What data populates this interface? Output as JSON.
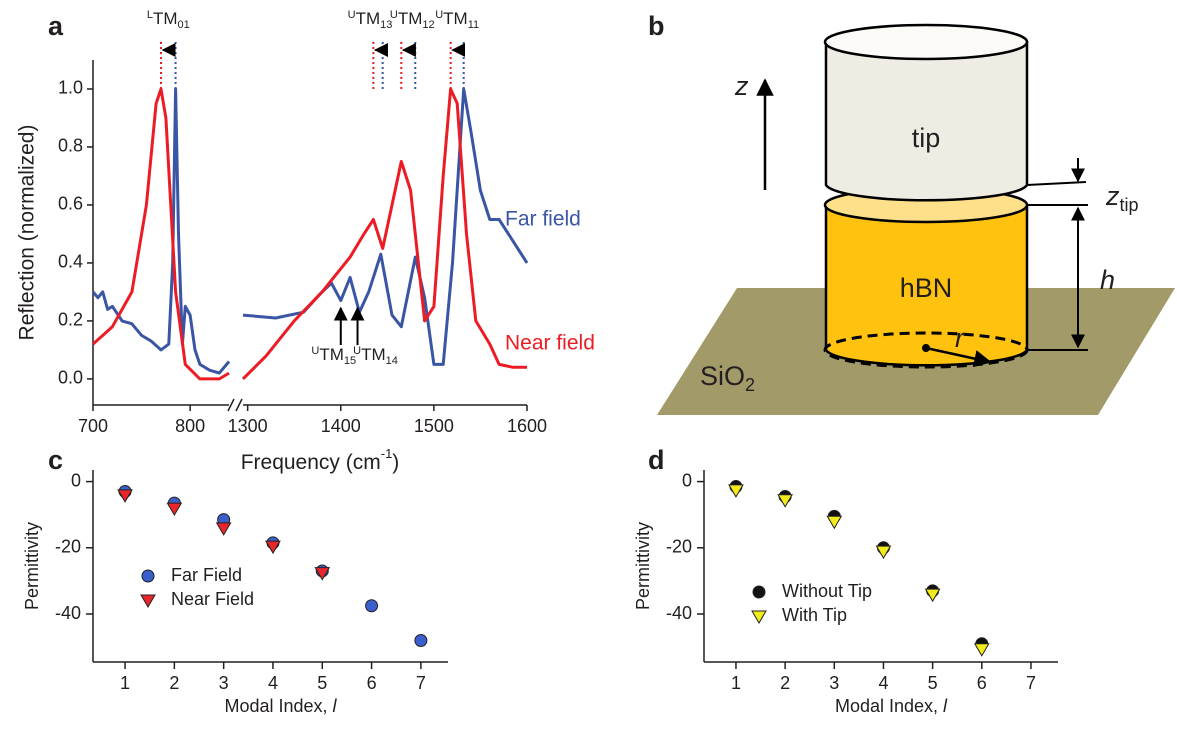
{
  "panel_labels": [
    "a",
    "b",
    "c",
    "d"
  ],
  "chart_data": [
    {
      "type": "line",
      "y_label": "Reflection (normalized)",
      "x_label": {
        "text": "Frequency (cm",
        "sup": "-1",
        "end": ")"
      },
      "x_segments": [
        [
          700,
          840
        ],
        [
          1295,
          1600
        ]
      ],
      "ylim": [
        -0.09,
        1.1
      ],
      "xticks": [
        700,
        800,
        1300,
        1400,
        1500,
        1600
      ],
      "yticks": [
        {
          "value": 0,
          "label": "0.0"
        },
        {
          "value": 0.2,
          "label": "0.2"
        },
        {
          "value": 0.4,
          "label": "0.4"
        },
        {
          "value": 0.6,
          "label": "0.6"
        },
        {
          "value": 0.8,
          "label": "0.8"
        },
        {
          "value": 1,
          "label": "1.0"
        }
      ],
      "series": [
        {
          "name": "Far field",
          "color": "#3a55a4",
          "x": [
            700,
            705,
            710,
            715,
            720,
            730,
            740,
            750,
            760,
            770,
            778,
            782,
            785,
            788,
            792,
            795,
            800,
            805,
            810,
            820,
            830,
            840,
            1295,
            1330,
            1360,
            1380,
            1390,
            1400,
            1410,
            1420,
            1430,
            1443,
            1455,
            1465,
            1480,
            1490,
            1500,
            1510,
            1520,
            1532,
            1540,
            1550,
            1560,
            1570,
            1580,
            1590,
            1600
          ],
          "values": [
            0.3,
            0.28,
            0.3,
            0.24,
            0.25,
            0.2,
            0.19,
            0.15,
            0.13,
            0.1,
            0.12,
            0.4,
            1.0,
            0.5,
            0.12,
            0.25,
            0.22,
            0.1,
            0.05,
            0.03,
            0.02,
            0.06,
            0.22,
            0.21,
            0.23,
            0.3,
            0.33,
            0.27,
            0.35,
            0.23,
            0.3,
            0.43,
            0.22,
            0.18,
            0.42,
            0.28,
            0.05,
            0.05,
            0.4,
            1.0,
            0.85,
            0.65,
            0.55,
            0.55,
            0.5,
            0.45,
            0.4
          ]
        },
        {
          "name": "Near field",
          "color": "#ed1c24",
          "x": [
            700,
            720,
            740,
            755,
            765,
            770,
            775,
            785,
            795,
            810,
            830,
            840,
            1295,
            1320,
            1350,
            1380,
            1410,
            1425,
            1435,
            1445,
            1455,
            1465,
            1475,
            1490,
            1500,
            1510,
            1518,
            1525,
            1535,
            1545,
            1560,
            1570,
            1585,
            1600
          ],
          "values": [
            0.12,
            0.18,
            0.3,
            0.6,
            0.95,
            1.0,
            0.9,
            0.3,
            0.05,
            0.0,
            0.0,
            0.02,
            0.0,
            0.08,
            0.2,
            0.3,
            0.42,
            0.5,
            0.55,
            0.45,
            0.6,
            0.75,
            0.65,
            0.2,
            0.25,
            0.7,
            1.0,
            0.95,
            0.5,
            0.2,
            0.12,
            0.05,
            0.04,
            0.04
          ]
        }
      ],
      "annotations": [
        {
          "pre": "L",
          "text": "TM",
          "sub": "01",
          "near_x": 770,
          "far_x": 785
        },
        {
          "pre": "U",
          "text": "TM",
          "sub": "13",
          "near_x": 1435,
          "far_x": 1445
        },
        {
          "pre": "U",
          "text": "TM",
          "sub": "12",
          "near_x": 1465,
          "far_x": 1480
        },
        {
          "pre": "U",
          "text": "TM",
          "sub": "11",
          "near_x": 1518,
          "far_x": 1532
        }
      ],
      "arrow_labels": [
        {
          "pre": "U",
          "text": "TM",
          "sub": "15",
          "x": 1400
        },
        {
          "pre": "U",
          "text": "TM",
          "sub": "14",
          "x": 1418
        }
      ]
    },
    {
      "type": "scatter",
      "y_label": "Permittivity",
      "x_label": {
        "text": "Modal Index, ",
        "var": "l"
      },
      "xlim": [
        0.35,
        7.55
      ],
      "ylim": [
        -54.5,
        3.5
      ],
      "xticks": [
        1,
        2,
        3,
        4,
        5,
        6,
        7
      ],
      "yticks": [
        0,
        -20,
        -40
      ],
      "x": [
        1,
        2,
        3,
        4,
        5,
        6,
        7
      ],
      "series": [
        {
          "name": "Far Field",
          "color": "#3a5fcd",
          "marker": "circle",
          "values": [
            -3,
            -6.5,
            -11.5,
            -18.5,
            -27,
            -37.5,
            -48
          ]
        },
        {
          "name": "Near Field",
          "color": "#e8262b",
          "marker": "triangle",
          "values": [
            -4,
            -8,
            -14,
            -19.5,
            -27.5,
            null,
            null
          ]
        }
      ]
    },
    {
      "type": "scatter",
      "y_label": "Permittivity",
      "x_label": {
        "text": "Modal Index, ",
        "var": "l"
      },
      "xlim": [
        0.35,
        7.55
      ],
      "ylim": [
        -54.5,
        3.5
      ],
      "xticks": [
        1,
        2,
        3,
        4,
        5,
        6,
        7
      ],
      "yticks": [
        0,
        -20,
        -40
      ],
      "x": [
        1,
        2,
        3,
        4,
        5,
        6
      ],
      "series": [
        {
          "name": "Without Tip",
          "color": "#111111",
          "marker": "circle",
          "values": [
            -1.5,
            -4.5,
            -10.5,
            -20,
            -33,
            -49
          ]
        },
        {
          "name": "With Tip",
          "color": "#f2ec1c",
          "marker": "triangle",
          "values": [
            -2.5,
            -5.5,
            -12,
            -21,
            -34,
            -50.5
          ]
        }
      ]
    }
  ],
  "diagram": {
    "z": "z",
    "tip": "tip",
    "z_tip": {
      "text": "z",
      "sub": "tip"
    },
    "hbn": "hBN",
    "h": "h",
    "r": "r",
    "substrate": {
      "text": "SiO",
      "sub": "2"
    }
  }
}
